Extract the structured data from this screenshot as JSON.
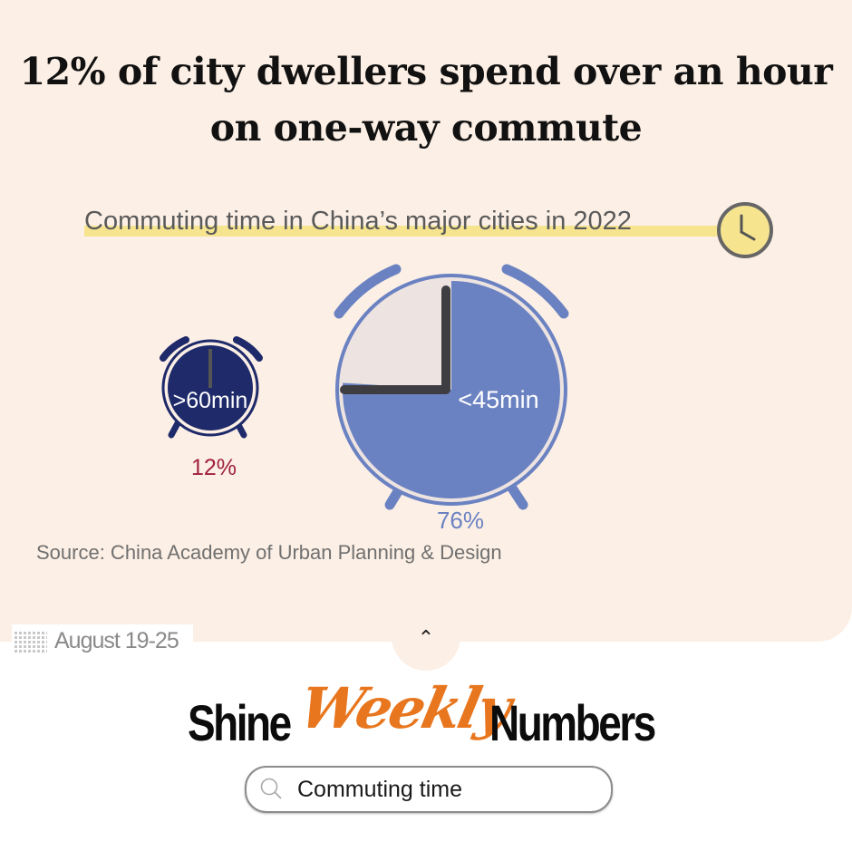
{
  "title_lines": [
    "12% of city dwellers spend over an hour",
    "on one-way commute"
  ],
  "subtitle": "Commuting time in China’s major cities in 2022",
  "source": "Source:  China Academy of Urban Planning & Design",
  "date_range": "August 19-25",
  "logo": {
    "shine": "Shine",
    "weekly": "Weekly",
    "numbers": "Numbers"
  },
  "search": {
    "value": "Commuting time"
  },
  "icons": {
    "clock": "clock-icon",
    "search": "search-icon",
    "chevron": "chevron-up-icon",
    "calendar": "calendar-grid-icon"
  },
  "chart_data": {
    "type": "pie",
    "title": "Commuting time in China’s major cities in 2022",
    "series": [
      {
        "name": ">60min",
        "value": 12,
        "value_label": "12%",
        "color": "#1e2a6a",
        "label_color": "#a0213f"
      },
      {
        "name": "<45min",
        "value": 76,
        "value_label": "76%",
        "color": "#6b82c2",
        "label_color": "#6b82c2"
      }
    ]
  },
  "colors": {
    "card_bg": "#fcefe5",
    "highlight": "#f6e48f",
    "brand_orange": "#e8761e"
  }
}
